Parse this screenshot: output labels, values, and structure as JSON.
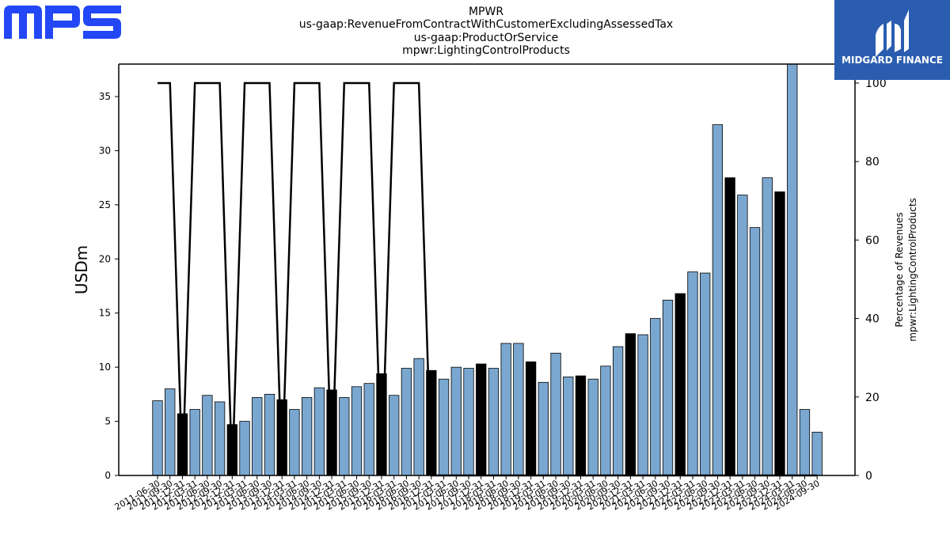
{
  "logos": {
    "left": {
      "text": "MPS",
      "color": "#2347f5"
    },
    "right": {
      "text": "MIDGARD FINANCE",
      "background": "#2a5db0"
    }
  },
  "chart_data": {
    "type": "bar",
    "title": [
      "MPWR",
      "us-gaap:RevenueFromContractWithCustomerExcludingAssessedTax",
      "us-gaap:ProductOrService",
      "mpwr:LightingControlProducts"
    ],
    "ylabel": "USDm",
    "y2label": [
      "Percentage of Revenues",
      "mpwr:LightingControlProducts"
    ],
    "ylim": [
      0,
      38
    ],
    "y2lim": [
      0,
      100
    ],
    "yticks": [
      0,
      5,
      10,
      15,
      20,
      25,
      30,
      35
    ],
    "y2ticks": [
      0,
      20,
      40,
      60,
      80,
      100
    ],
    "categories": [
      "2011-06-30",
      "2011-09-30",
      "2011-12-31",
      "2012-03-31",
      "2012-06-30",
      "2012-09-30",
      "2012-12-31",
      "2013-03-31",
      "2013-06-30",
      "2013-09-30",
      "2013-12-31",
      "2014-03-31",
      "2014-06-30",
      "2014-09-30",
      "2014-12-31",
      "2015-03-31",
      "2015-06-30",
      "2015-09-30",
      "2015-12-31",
      "2016-03-31",
      "2016-06-30",
      "2016-09-30",
      "2016-12-31",
      "2017-03-31",
      "2017-06-30",
      "2017-09-30",
      "2017-12-31",
      "2018-03-31",
      "2018-06-30",
      "2018-09-30",
      "2018-12-31",
      "2019-03-31",
      "2019-06-30",
      "2019-09-30",
      "2019-12-31",
      "2020-03-31",
      "2020-06-30",
      "2020-09-30",
      "2020-12-31",
      "2021-03-31",
      "2021-06-30",
      "2021-09-30",
      "2021-12-31",
      "2022-03-31",
      "2022-06-30",
      "2022-09-30",
      "2022-12-31",
      "2023-03-31",
      "2023-06-30",
      "2023-09-30",
      "2023-12-31",
      "2024-03-31",
      "2024-06-30",
      "2024-09-30"
    ],
    "series": [
      {
        "type": "bar",
        "values": [
          6.9,
          8.0,
          5.7,
          6.1,
          7.4,
          6.8,
          4.7,
          5.0,
          7.2,
          7.5,
          7.0,
          6.1,
          7.2,
          8.1,
          7.9,
          7.2,
          8.2,
          8.5,
          9.4,
          7.4,
          9.9,
          10.8,
          9.7,
          8.9,
          10.0,
          9.9,
          10.3,
          9.9,
          12.2,
          12.2,
          10.5,
          8.6,
          11.3,
          9.1,
          9.2,
          8.9,
          10.1,
          11.9,
          13.1,
          13.0,
          14.5,
          16.2,
          16.8,
          18.8,
          18.7,
          32.4,
          27.5,
          25.9,
          22.9,
          27.5,
          26.2,
          38.5,
          6.1,
          4.0
        ],
        "colors": {
          "quarter": "#7aa7cf",
          "annual": "#000000"
        }
      },
      {
        "type": "line",
        "values": [
          100,
          100,
          0,
          100,
          100,
          100,
          0,
          100,
          100,
          100,
          0,
          100,
          100,
          100,
          0,
          100,
          100,
          100,
          0,
          100,
          100,
          100,
          0,
          0,
          0,
          0,
          0,
          0,
          0,
          0,
          0,
          0,
          0,
          0,
          0,
          0,
          0,
          0,
          0,
          0,
          0,
          0,
          0,
          0,
          0,
          0,
          0,
          0,
          0,
          0,
          0,
          0,
          0,
          0
        ],
        "axis": "right",
        "color": "#000000"
      }
    ]
  }
}
